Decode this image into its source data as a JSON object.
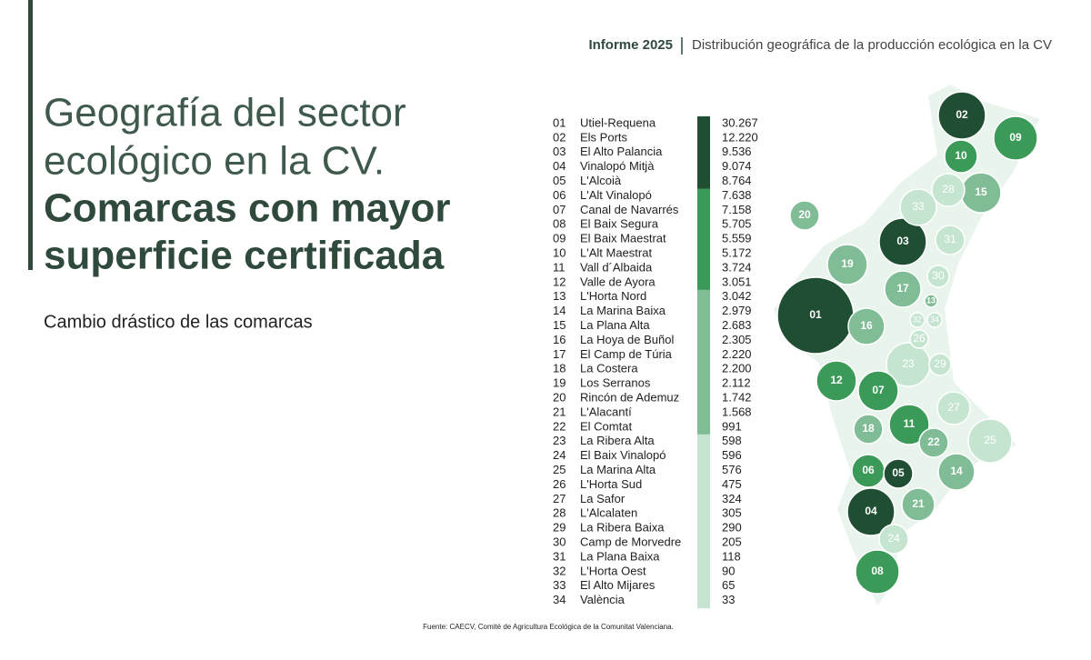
{
  "header": {
    "report": "Informe 2025",
    "section": "Distribución geográfica de la producción ecológica en la CV"
  },
  "title": {
    "line1": "Geografía del sector",
    "line2": "ecológico en la CV.",
    "line3": "Comarcas con mayor",
    "line4": "superficie certificada"
  },
  "subtitle": "Cambio drástico de las comarcas",
  "table": {
    "rows": [
      {
        "id": "01",
        "name": "Utiel-Requena",
        "value": "30.267",
        "color": "#1f4e33"
      },
      {
        "id": "02",
        "name": "Els Ports",
        "value": "12.220",
        "color": "#1f4e33"
      },
      {
        "id": "03",
        "name": "El Alto Palancia",
        "value": "9.536",
        "color": "#1f4e33"
      },
      {
        "id": "04",
        "name": "Vinalopó Mitjà",
        "value": "9.074",
        "color": "#1f4e33"
      },
      {
        "id": "05",
        "name": "L'Alcoià",
        "value": "8.764",
        "color": "#1f4e33"
      },
      {
        "id": "06",
        "name": "L'Alt Vinalopó",
        "value": "7.638",
        "color": "#3b9a57"
      },
      {
        "id": "07",
        "name": "Canal de Navarrés",
        "value": "7.158",
        "color": "#3b9a57"
      },
      {
        "id": "08",
        "name": "El Baix Segura",
        "value": "5.705",
        "color": "#3b9a57"
      },
      {
        "id": "09",
        "name": "El Baix Maestrat",
        "value": "5.559",
        "color": "#3b9a57"
      },
      {
        "id": "10",
        "name": "L'Alt Maestrat",
        "value": "5.172",
        "color": "#3b9a57"
      },
      {
        "id": "11",
        "name": "Vall d´Albaida",
        "value": "3.724",
        "color": "#3b9a57"
      },
      {
        "id": "12",
        "name": "Valle de Ayora",
        "value": "3.051",
        "color": "#3b9a57"
      },
      {
        "id": "13",
        "name": "L'Horta Nord",
        "value": "3.042",
        "color": "#80bd96"
      },
      {
        "id": "14",
        "name": "La Marina Baixa",
        "value": "2.979",
        "color": "#80bd96"
      },
      {
        "id": "15",
        "name": "La Plana Alta",
        "value": "2.683",
        "color": "#80bd96"
      },
      {
        "id": "16",
        "name": "La Hoya de Buñol",
        "value": "2.305",
        "color": "#80bd96"
      },
      {
        "id": "17",
        "name": "El Camp de Túria",
        "value": "2.220",
        "color": "#80bd96"
      },
      {
        "id": "18",
        "name": "La Costera",
        "value": "2.200",
        "color": "#80bd96"
      },
      {
        "id": "19",
        "name": "Los Serranos",
        "value": "2.112",
        "color": "#80bd96"
      },
      {
        "id": "20",
        "name": "Rincón de Ademuz",
        "value": "1.742",
        "color": "#80bd96"
      },
      {
        "id": "21",
        "name": "L'Alacantí",
        "value": "1.568",
        "color": "#80bd96"
      },
      {
        "id": "22",
        "name": "El Comtat",
        "value": "991",
        "color": "#80bd96"
      },
      {
        "id": "23",
        "name": "La Ribera Alta",
        "value": "598",
        "color": "#c6e5d1"
      },
      {
        "id": "24",
        "name": "El Baix Vinalopó",
        "value": "596",
        "color": "#c6e5d1"
      },
      {
        "id": "25",
        "name": "La Marina Alta",
        "value": "576",
        "color": "#c6e5d1"
      },
      {
        "id": "26",
        "name": "L'Horta Sud",
        "value": "475",
        "color": "#c6e5d1"
      },
      {
        "id": "27",
        "name": "La Safor",
        "value": "324",
        "color": "#c6e5d1"
      },
      {
        "id": "28",
        "name": "L'Alcalaten",
        "value": "305",
        "color": "#c6e5d1"
      },
      {
        "id": "29",
        "name": "La Ribera Baixa",
        "value": "290",
        "color": "#c6e5d1"
      },
      {
        "id": "30",
        "name": "Camp de Morvedre",
        "value": "205",
        "color": "#c6e5d1"
      },
      {
        "id": "31",
        "name": "La Plana Baixa",
        "value": "118",
        "color": "#c6e5d1"
      },
      {
        "id": "32",
        "name": "L'Horta Oest",
        "value": "90",
        "color": "#c6e5d1"
      },
      {
        "id": "33",
        "name": "El Alto Mijares",
        "value": "65",
        "color": "#c6e5d1"
      },
      {
        "id": "34",
        "name": "València",
        "value": "33",
        "color": "#c6e5d1"
      }
    ]
  },
  "source": "Fuente: CAECV, Comité de Agricultura Ecológica de la Comunitat Valenciana."
}
